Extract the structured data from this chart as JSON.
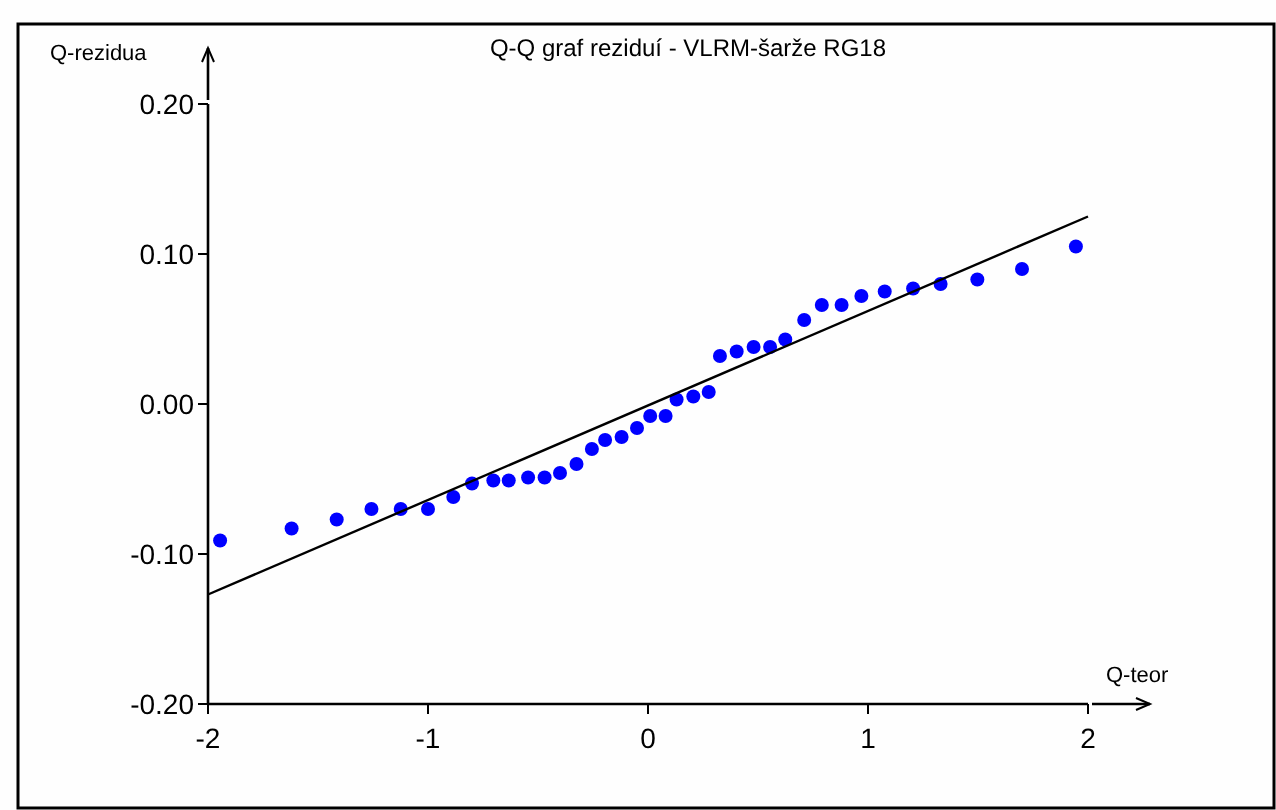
{
  "chart_data": {
    "type": "scatter",
    "title": "Q-Q graf reziduí - VLRM-šarže RG18",
    "xlabel": "Q-teor",
    "ylabel": "Q-rezidua",
    "xlim": [
      -2,
      2
    ],
    "ylim": [
      -0.2,
      0.2
    ],
    "xticks": [
      -2,
      -1,
      0,
      1,
      2
    ],
    "yticks": [
      {
        "value": -0.2,
        "label": "-0.20"
      },
      {
        "value": -0.1,
        "label": "-0.10"
      },
      {
        "value": 0,
        "label": "0.00"
      },
      {
        "value": 0.1,
        "label": "0.10"
      },
      {
        "value": 0.2,
        "label": "0.20"
      }
    ],
    "grid": false,
    "series": [
      {
        "marker": "circle",
        "color": "#0000ff",
        "x": [
          -1.945,
          -1.62,
          -1.415,
          -1.257,
          -1.124,
          -1.0,
          -0.885,
          -0.8,
          -0.703,
          -0.633,
          -0.545,
          -0.47,
          -0.4,
          -0.325,
          -0.255,
          -0.195,
          -0.12,
          -0.05,
          0.01,
          0.08,
          0.13,
          0.206,
          0.276,
          0.327,
          0.403,
          0.48,
          0.555,
          0.624,
          0.71,
          0.79,
          0.88,
          0.97,
          1.076,
          1.205,
          1.33,
          1.497,
          1.7,
          1.945
        ],
        "values": [
          -0.091,
          -0.083,
          -0.077,
          -0.07,
          -0.07,
          -0.07,
          -0.062,
          -0.053,
          -0.051,
          -0.051,
          -0.049,
          -0.049,
          -0.046,
          -0.04,
          -0.03,
          -0.024,
          -0.022,
          -0.016,
          -0.008,
          -0.008,
          0.003,
          0.005,
          0.008,
          0.032,
          0.035,
          0.038,
          0.038,
          0.043,
          0.056,
          0.066,
          0.066,
          0.072,
          0.075,
          0.077,
          0.08,
          0.083,
          0.09,
          0.105
        ]
      },
      {
        "type": "line",
        "color": "#000000",
        "line_style": "solid",
        "x": [
          -2,
          2
        ],
        "values": [
          -0.127,
          0.125
        ]
      }
    ]
  }
}
